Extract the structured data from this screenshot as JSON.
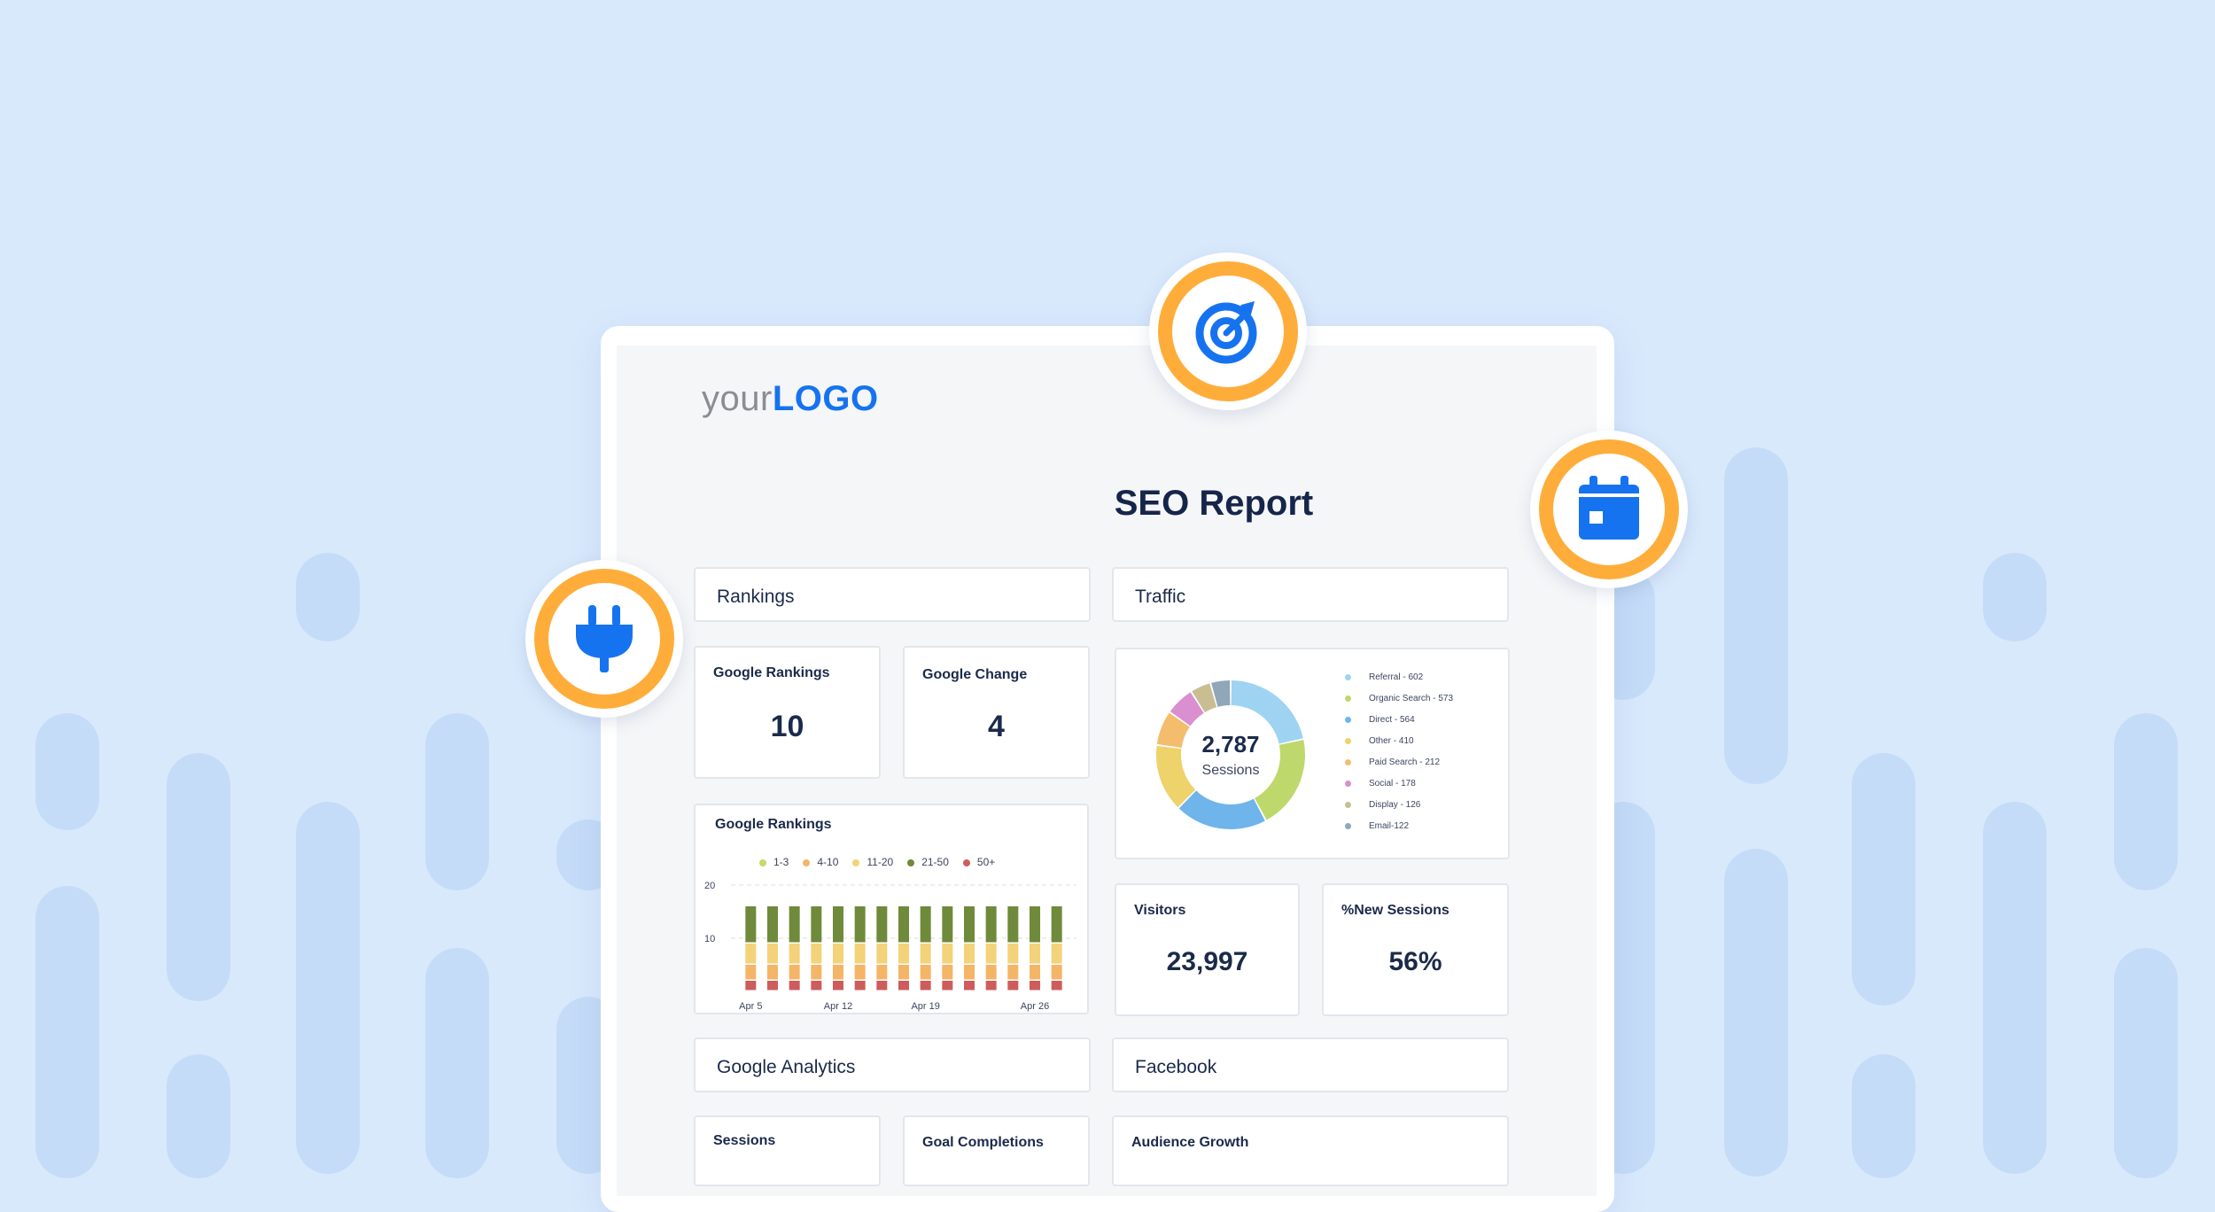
{
  "logo": {
    "your": "your",
    "mark": "LOGO"
  },
  "report_title": "SEO Report",
  "sections": {
    "rankings": "Rankings",
    "traffic": "Traffic",
    "google_analytics": "Google Analytics",
    "facebook": "Facebook"
  },
  "metrics": {
    "google_rankings": {
      "label": "Google Rankings",
      "value": "10"
    },
    "google_change": {
      "label": "Google Change",
      "value": "4"
    },
    "visitors": {
      "label": "Visitors",
      "value": "23,997"
    },
    "new_sessions": {
      "label": "%New Sessions",
      "value": "56%"
    },
    "sessions": {
      "label": "Sessions"
    },
    "goal_completions": {
      "label": "Goal Completions"
    },
    "audience_growth": {
      "label": "Audience Growth"
    }
  },
  "icons": {
    "target": "target-arrow-icon",
    "calendar": "calendar-icon",
    "plug": "plug-icon"
  },
  "colors": {
    "accent": "#1673f0",
    "badge_ring": "#ffad3a",
    "background": "#d9e9fc"
  },
  "chart_data": [
    {
      "type": "bar",
      "title": "Google Rankings",
      "stacked": true,
      "ylim": [
        0,
        20
      ],
      "yticks": [
        "20",
        "10"
      ],
      "xtick_labels": [
        "Apr 5",
        "Apr 12",
        "Apr 19",
        "Apr 26"
      ],
      "categories": [
        "1",
        "2",
        "3",
        "4",
        "5",
        "6",
        "7",
        "8",
        "9",
        "10",
        "11",
        "12",
        "13",
        "14",
        "15"
      ],
      "series": [
        {
          "name": "1-3",
          "color": "#c8d86a",
          "values": [
            0,
            0,
            0,
            0,
            0,
            0,
            0,
            0,
            0,
            0,
            0,
            0,
            0,
            0,
            0
          ]
        },
        {
          "name": "50+",
          "color": "#cf5c5c",
          "values": [
            2,
            2,
            2,
            2,
            2,
            2,
            2,
            2,
            2,
            2,
            2,
            2,
            2,
            2,
            2
          ]
        },
        {
          "name": "4-10",
          "color": "#f4b567",
          "values": [
            3,
            3,
            3,
            3,
            3,
            3,
            3,
            3,
            3,
            3,
            3,
            3,
            3,
            3,
            3
          ]
        },
        {
          "name": "11-20",
          "color": "#f3d27a",
          "values": [
            4,
            4,
            4,
            4,
            4,
            4,
            4,
            4,
            4,
            4,
            4,
            4,
            4,
            4,
            4
          ]
        },
        {
          "name": "21-50",
          "color": "#6f8a3a",
          "values": [
            7,
            7,
            7,
            7,
            7,
            7,
            7,
            7,
            7,
            7,
            7,
            7,
            7,
            7,
            7
          ]
        }
      ],
      "legend_order": [
        "1-3",
        "4-10",
        "11-20",
        "21-50",
        "50+"
      ]
    },
    {
      "type": "pie",
      "donut": true,
      "center_value": "2,787",
      "center_label": "Sessions",
      "slices": [
        {
          "name": "Referral - 602",
          "value": 602,
          "color": "#9fd3f2"
        },
        {
          "name": "Organic Search - 573",
          "value": 573,
          "color": "#bfd86b"
        },
        {
          "name": "Direct - 564",
          "value": 564,
          "color": "#6fb4ea"
        },
        {
          "name": "Other - 410",
          "value": 410,
          "color": "#eed26a"
        },
        {
          "name": "Paid Search - 212",
          "value": 212,
          "color": "#f4bd6e"
        },
        {
          "name": "Social - 178",
          "value": 178,
          "color": "#d98fd0"
        },
        {
          "name": "Display - 126",
          "value": 126,
          "color": "#c9be92"
        },
        {
          "name": "Email-122",
          "value": 122,
          "color": "#8fa7b8"
        }
      ]
    }
  ]
}
